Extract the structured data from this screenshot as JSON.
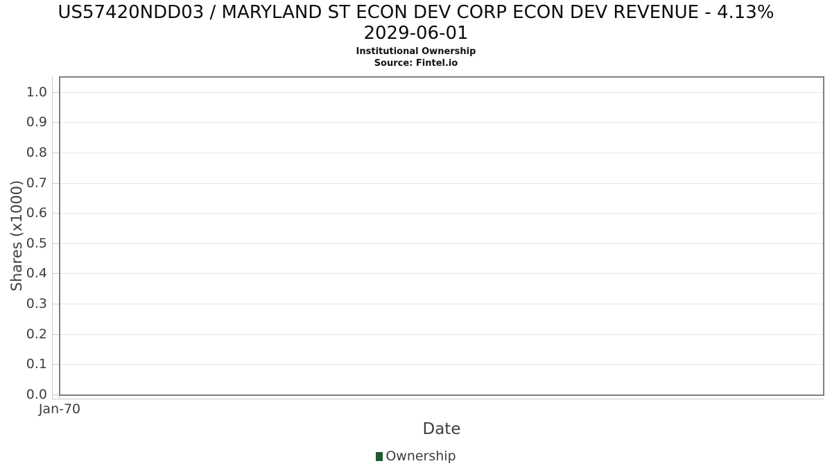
{
  "page": {
    "background_color": "#ffffff"
  },
  "chart_data": {
    "type": "line",
    "title": "US57420NDD03 / MARYLAND ST ECON DEV CORP ECON DEV REVENUE - 4.13% 2029-06-01",
    "title_lines": [
      "US57420NDD03 / MARYLAND ST ECON DEV CORP ECON DEV REVENUE - 4.13%",
      "2029-06-01"
    ],
    "subtitle": "Institutional Ownership",
    "source": "Source: Fintel.io",
    "xlabel": "Date",
    "ylabel": "Shares (x1000)",
    "x_tick_labels": [
      "Jan-70"
    ],
    "y_tick_labels": [
      "0.0",
      "0.1",
      "0.2",
      "0.3",
      "0.4",
      "0.5",
      "0.6",
      "0.7",
      "0.8",
      "0.9",
      "1.0"
    ],
    "ylim": [
      0,
      1.047
    ],
    "grid": true,
    "legend_position": "bottom",
    "series": [
      {
        "name": "Ownership",
        "color": "#205a31",
        "values": []
      }
    ],
    "colors": {
      "plot_border": "#7f7f7f",
      "gridline": "#e6e6e6",
      "tick_line": "#cbcbcb",
      "tick_text": "#3d3d3d",
      "title_text": "#0c0c0c"
    }
  }
}
